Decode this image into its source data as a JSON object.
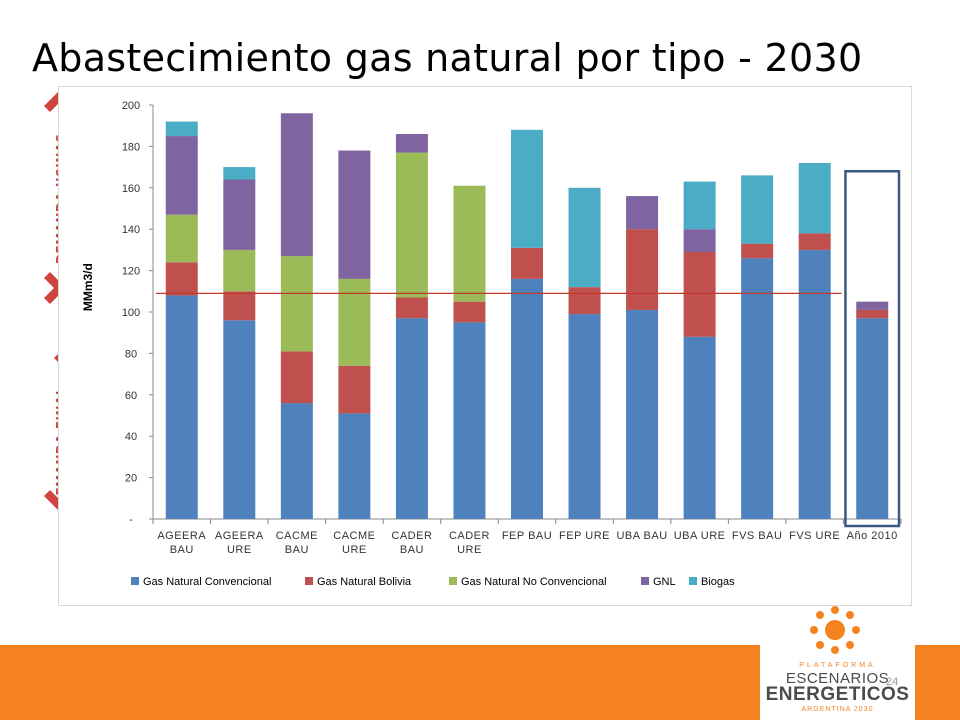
{
  "title": "Abastecimiento gas natural por tipo - 2030",
  "side_nav": {
    "demanda_usinas": "DEMANDA USINAS",
    "demanda_final": "DEMANDA FINAL"
  },
  "page_number": "24",
  "logo": {
    "line1": "PLATAFORMA",
    "line2": "ESCENARIOS",
    "line3": "ENERGETICOS",
    "line4": "ARGENTINA 2030"
  },
  "colors": {
    "convencional": "#4f81bd",
    "bolivia": "#c0504d",
    "no_convencional": "#9bbb59",
    "gnl": "#8064a2",
    "biogas": "#4bacc6",
    "reference_line": "#c0392b",
    "highlight_box": "#3b5a80",
    "accent_orange": "#f4831f",
    "nav_red": "#d0443f"
  },
  "chart_data": {
    "type": "bar",
    "stacked": true,
    "ylabel": "MMm3/d",
    "ylim": [
      0,
      200
    ],
    "yticks": [
      0,
      20,
      40,
      60,
      80,
      100,
      120,
      140,
      160,
      180,
      200
    ],
    "ytick_labels": [
      "-",
      "20",
      "40",
      "60",
      "80",
      "100",
      "120",
      "140",
      "160",
      "180",
      "200"
    ],
    "categories": [
      [
        "AGEERA",
        "BAU"
      ],
      [
        "AGEERA",
        "URE"
      ],
      [
        "CACME",
        "BAU"
      ],
      [
        "CACME",
        "URE"
      ],
      [
        "CADER",
        "BAU"
      ],
      [
        "CADER",
        "URE"
      ],
      [
        "FEP BAU"
      ],
      [
        "FEP URE"
      ],
      [
        "UBA BAU"
      ],
      [
        "UBA URE"
      ],
      [
        "FVS BAU"
      ],
      [
        "FVS URE"
      ],
      [
        "Año 2010"
      ]
    ],
    "series": [
      {
        "name": "Gas Natural Convencional",
        "color": "#4f81bd",
        "values": [
          108,
          96,
          56,
          51,
          97,
          95,
          116,
          99,
          101,
          88,
          126,
          130,
          97
        ]
      },
      {
        "name": "Gas Natural Bolivia",
        "color": "#c0504d",
        "values": [
          16,
          14,
          25,
          23,
          10,
          10,
          15,
          13,
          39,
          41,
          7,
          8,
          4
        ]
      },
      {
        "name": "Gas Natural No Convencional",
        "color": "#9bbb59",
        "values": [
          23,
          20,
          46,
          42,
          70,
          56,
          0,
          0,
          0,
          0,
          0,
          0,
          0
        ]
      },
      {
        "name": "GNL",
        "color": "#8064a2",
        "values": [
          38,
          34,
          69,
          62,
          9,
          0,
          0,
          0,
          16,
          11,
          0,
          0,
          4
        ]
      },
      {
        "name": "Biogas",
        "color": "#4bacc6",
        "values": [
          7,
          6,
          0,
          0,
          0,
          0,
          57,
          48,
          0,
          23,
          33,
          34,
          0
        ]
      }
    ],
    "reference_line": 109,
    "highlighted_category": "Año 2010",
    "legend_position": "bottom",
    "grid": false
  }
}
